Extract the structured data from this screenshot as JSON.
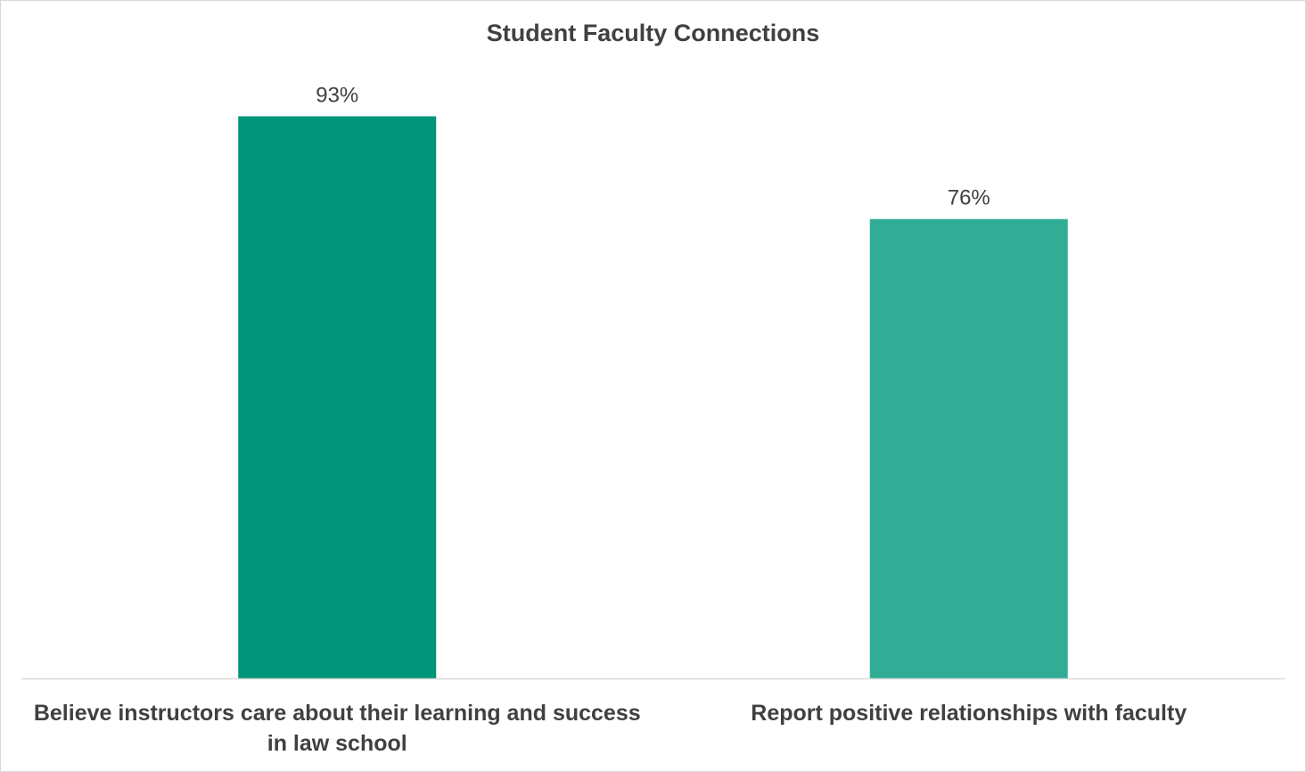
{
  "chart_data": {
    "type": "bar",
    "title": "Student Faculty Connections",
    "categories": [
      "Believe instructors care about their learning and success in law school",
      "Report positive relationships with faculty"
    ],
    "values": [
      93,
      76
    ],
    "value_labels": [
      "93%",
      "76%"
    ],
    "unit": "%",
    "xlabel": "",
    "ylabel": "",
    "ylim": [
      0,
      100
    ],
    "grid": false,
    "legend": "none",
    "colors": [
      "#009479",
      "#31AD96"
    ],
    "axis_color": "#d9d9d9"
  }
}
